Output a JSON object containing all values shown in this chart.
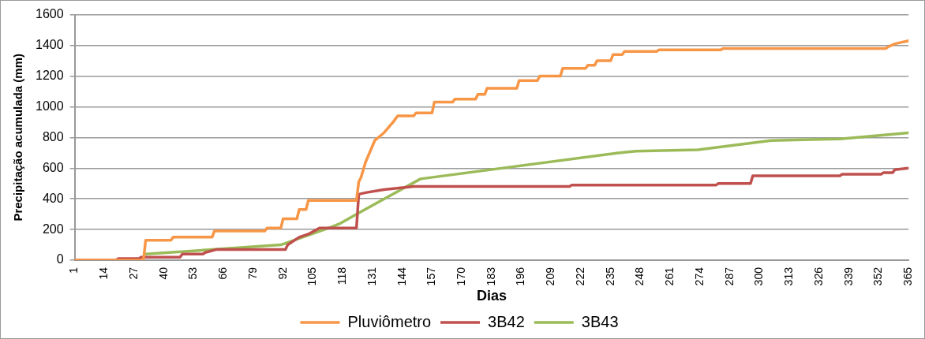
{
  "chart_data": {
    "type": "line",
    "xlabel": "Dias",
    "ylabel": "Precipitação acumulada (mm)",
    "xlim": [
      1,
      365
    ],
    "xticks": [
      1,
      14,
      27,
      40,
      53,
      66,
      79,
      92,
      105,
      118,
      131,
      144,
      157,
      170,
      183,
      196,
      209,
      222,
      235,
      248,
      261,
      274,
      287,
      300,
      313,
      326,
      339,
      352,
      365
    ],
    "ylim": [
      0,
      1600
    ],
    "yticks": [
      0,
      200,
      400,
      600,
      800,
      1000,
      1200,
      1400,
      1600
    ],
    "grid": "y",
    "legend": "bottom",
    "marker": "none",
    "line_style": "solid",
    "series": [
      {
        "name": "Pluviômetro",
        "color": "#f79646",
        "x": [
          1,
          31,
          32,
          43,
          44,
          61,
          62,
          84,
          85,
          91,
          92,
          98,
          99,
          102,
          103,
          124,
          125,
          126,
          128,
          132,
          136,
          140,
          142,
          149,
          150,
          157,
          158,
          166,
          167,
          176,
          177,
          180,
          181,
          194,
          195,
          203,
          204,
          213,
          214,
          224,
          225,
          228,
          229,
          235,
          236,
          240,
          241,
          255,
          256,
          283,
          284,
          355,
          356,
          359,
          362,
          365
        ],
        "values": [
          0,
          0,
          130,
          130,
          150,
          150,
          190,
          190,
          210,
          210,
          270,
          270,
          330,
          330,
          390,
          390,
          510,
          540,
          640,
          780,
          830,
          900,
          940,
          940,
          960,
          960,
          1030,
          1030,
          1050,
          1050,
          1080,
          1080,
          1120,
          1120,
          1170,
          1170,
          1200,
          1200,
          1250,
          1250,
          1270,
          1270,
          1300,
          1300,
          1340,
          1340,
          1360,
          1360,
          1370,
          1370,
          1380,
          1380,
          1390,
          1410,
          1420,
          1430
        ]
      },
      {
        "name": "3B42",
        "color": "#c0504d",
        "x": [
          1,
          19,
          20,
          29,
          30,
          47,
          48,
          57,
          58,
          63,
          93,
          94,
          99,
          103,
          108,
          124,
          125,
          128,
          136,
          149,
          217,
          218,
          281,
          282,
          296,
          297,
          335,
          336,
          353,
          354,
          358,
          359,
          365
        ],
        "values": [
          0,
          0,
          10,
          10,
          20,
          20,
          40,
          40,
          50,
          70,
          70,
          100,
          150,
          170,
          210,
          210,
          430,
          440,
          460,
          480,
          480,
          490,
          490,
          500,
          500,
          550,
          550,
          560,
          560,
          570,
          570,
          590,
          600
        ]
      },
      {
        "name": "3B43",
        "color": "#9bbb59",
        "x": [
          32,
          91,
          112,
          117,
          124,
          152,
          239,
          246,
          273,
          305,
          335,
          365
        ],
        "values": [
          40,
          100,
          210,
          240,
          300,
          530,
          700,
          710,
          720,
          780,
          790,
          830
        ]
      }
    ]
  }
}
